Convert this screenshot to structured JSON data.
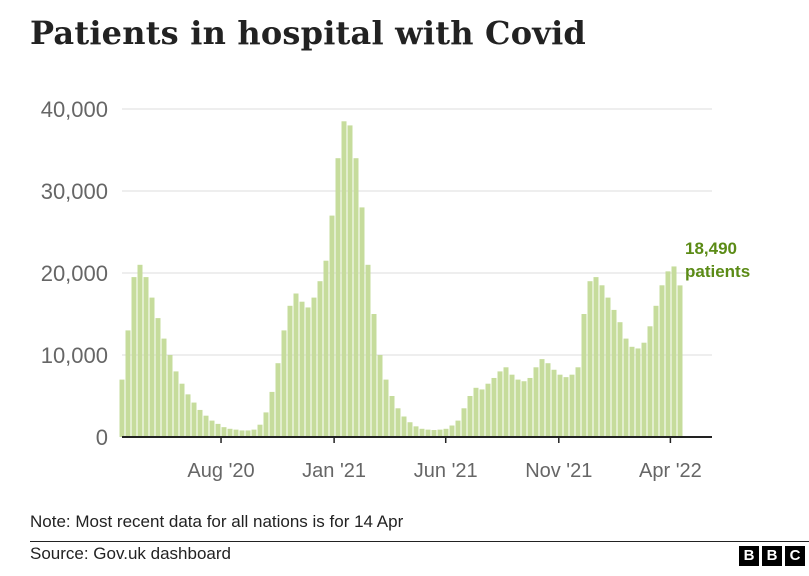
{
  "title": "Patients in hospital with Covid",
  "note": "Note: Most recent data for all nations is for 14 Apr",
  "source": "Source: Gov.uk dashboard",
  "logo_letters": [
    "B",
    "B",
    "C"
  ],
  "colors": {
    "bar": "#c6dc9c",
    "accent": "#5b8b16",
    "grid": "#dddddd",
    "baseline": "#222222",
    "tick_label": "#666666"
  },
  "chart_data": {
    "type": "bar",
    "title": "Patients in hospital with Covid",
    "xlabel": "",
    "ylabel": "",
    "ylim": [
      0,
      40000
    ],
    "yticks": [
      0,
      10000,
      20000,
      30000,
      40000
    ],
    "ytick_labels": [
      "0",
      "10,000",
      "20,000",
      "30,000",
      "40,000"
    ],
    "xticks": [
      "2020-08-01",
      "2021-01-01",
      "2021-06-01",
      "2021-11-01",
      "2022-04-01"
    ],
    "xtick_labels": [
      "Aug '20",
      "Jan '21",
      "Jun '21",
      "Nov '21",
      "Apr '22"
    ],
    "grid": true,
    "annotation": {
      "value": "18,490",
      "label": "patients"
    },
    "x_start": "2020-03-20",
    "x_end": "2022-04-14",
    "series": [
      {
        "values": [
          7000,
          13000,
          19500,
          21000,
          19500,
          17000,
          14500,
          12000,
          10000,
          8000,
          6500,
          5200,
          4200,
          3300,
          2600,
          2000,
          1600,
          1200,
          1000,
          900,
          800,
          800,
          900,
          1500,
          3000,
          5500,
          9000,
          13000,
          16000,
          17500,
          16500,
          15800,
          17000,
          19000,
          21500,
          27000,
          34000,
          38500,
          38000,
          34000,
          28000,
          21000,
          15000,
          10000,
          7000,
          5000,
          3500,
          2500,
          1800,
          1300,
          1000,
          900,
          850,
          900,
          1000,
          1400,
          2000,
          3500,
          5000,
          6000,
          5800,
          6500,
          7200,
          8000,
          8500,
          7600,
          7000,
          6800,
          7200,
          8500,
          9500,
          9000,
          8200,
          7600,
          7300,
          7600,
          8500,
          15000,
          19000,
          19500,
          18500,
          17000,
          15500,
          14000,
          12000,
          11000,
          10800,
          11500,
          13500,
          16000,
          18500,
          20200,
          20800,
          18490
        ]
      }
    ]
  }
}
